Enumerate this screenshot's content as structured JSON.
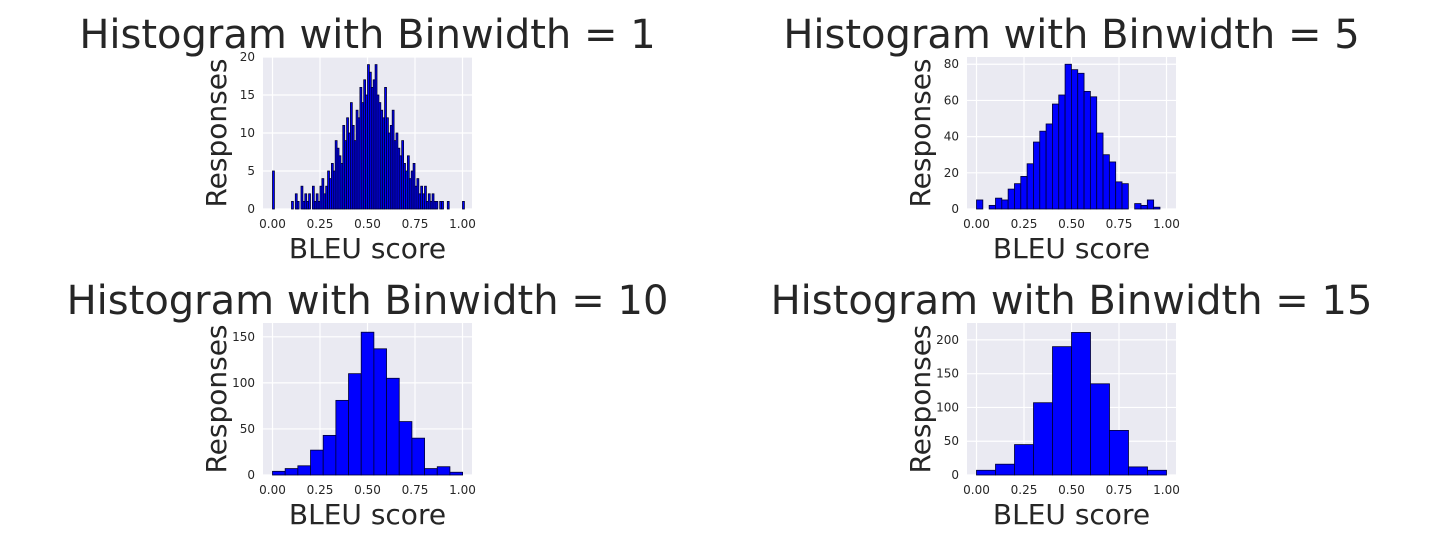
{
  "chart_data": [
    {
      "type": "bar",
      "title": "Histogram with Binwidth = 1",
      "xlabel": "BLEU score",
      "ylabel": "Responses",
      "xlim": [
        -0.05,
        1.05
      ],
      "ylim": [
        0,
        20
      ],
      "xticks": [
        "0.00",
        "0.25",
        "0.50",
        "0.75",
        "1.00"
      ],
      "yticks": [
        "0",
        "5",
        "10",
        "15",
        "20"
      ],
      "bin_width": 0.01,
      "bin_start": 0.0,
      "values": [
        5,
        0,
        0,
        0,
        0,
        0,
        0,
        0,
        0,
        0,
        1,
        0,
        2,
        1,
        0,
        3,
        1,
        2,
        1,
        2,
        0,
        3,
        1,
        2,
        1,
        3,
        4,
        2,
        3,
        5,
        4,
        6,
        5,
        9,
        8,
        7,
        6,
        11,
        9,
        12,
        10,
        14,
        11,
        9,
        13,
        12,
        16,
        14,
        17,
        15,
        19,
        18,
        16,
        17,
        19,
        15,
        14,
        13,
        12,
        16,
        12,
        10,
        11,
        13,
        9,
        10,
        8,
        7,
        9,
        6,
        5,
        7,
        4,
        5,
        6,
        3,
        4,
        2,
        3,
        2,
        3,
        1,
        2,
        1,
        2,
        1,
        1,
        0,
        1,
        1,
        0,
        0,
        1,
        0,
        0,
        0,
        0,
        0,
        0,
        0,
        1
      ],
      "grid": true,
      "style": {
        "bar_color": "#0000ff",
        "edge_color": "#000033",
        "background": "#eaeaf2",
        "grid_color": "#ffffff"
      }
    },
    {
      "type": "bar",
      "title": "Histogram with Binwidth = 5",
      "xlabel": "BLEU score",
      "ylabel": "Responses",
      "xlim": [
        -0.05,
        1.05
      ],
      "ylim": [
        0,
        84
      ],
      "xticks": [
        "0.00",
        "0.25",
        "0.50",
        "0.75",
        "1.00"
      ],
      "yticks": [
        "0",
        "20",
        "40",
        "60",
        "80"
      ],
      "bin_width": 0.0333,
      "bin_start": 0.0,
      "values": [
        5,
        0,
        2,
        6,
        5,
        11,
        14,
        18,
        25,
        37,
        43,
        47,
        58,
        63,
        80,
        77,
        75,
        65,
        62,
        42,
        30,
        26,
        15,
        14,
        0,
        3,
        2,
        5,
        1
      ],
      "grid": true,
      "style": {
        "bar_color": "#0000ff",
        "edge_color": "#000033",
        "background": "#eaeaf2",
        "grid_color": "#ffffff"
      }
    },
    {
      "type": "bar",
      "title": "Histogram with Binwidth = 10",
      "xlabel": "BLEU score",
      "ylabel": "Responses",
      "xlim": [
        -0.05,
        1.05
      ],
      "ylim": [
        0,
        165
      ],
      "xticks": [
        "0.00",
        "0.25",
        "0.50",
        "0.75",
        "1.00"
      ],
      "yticks": [
        "0",
        "50",
        "100",
        "150"
      ],
      "bin_width": 0.0667,
      "bin_start": 0.0,
      "values": [
        4,
        7,
        10,
        27,
        43,
        81,
        110,
        155,
        137,
        105,
        58,
        40,
        7,
        9,
        3
      ],
      "grid": true,
      "style": {
        "bar_color": "#0000ff",
        "edge_color": "#000033",
        "background": "#eaeaf2",
        "grid_color": "#ffffff"
      }
    },
    {
      "type": "bar",
      "title": "Histogram with Binwidth = 15",
      "xlabel": "BLEU score",
      "ylabel": "Responses",
      "xlim": [
        -0.05,
        1.05
      ],
      "ylim": [
        0,
        225
      ],
      "xticks": [
        "0.00",
        "0.25",
        "0.50",
        "0.75",
        "1.00"
      ],
      "yticks": [
        "0",
        "50",
        "100",
        "150",
        "200"
      ],
      "bin_width": 0.1,
      "bin_start": 0.0,
      "values": [
        7,
        16,
        45,
        107,
        190,
        211,
        135,
        66,
        12,
        7
      ],
      "grid": true,
      "style": {
        "bar_color": "#0000ff",
        "edge_color": "#000033",
        "background": "#eaeaf2",
        "grid_color": "#ffffff"
      }
    }
  ]
}
